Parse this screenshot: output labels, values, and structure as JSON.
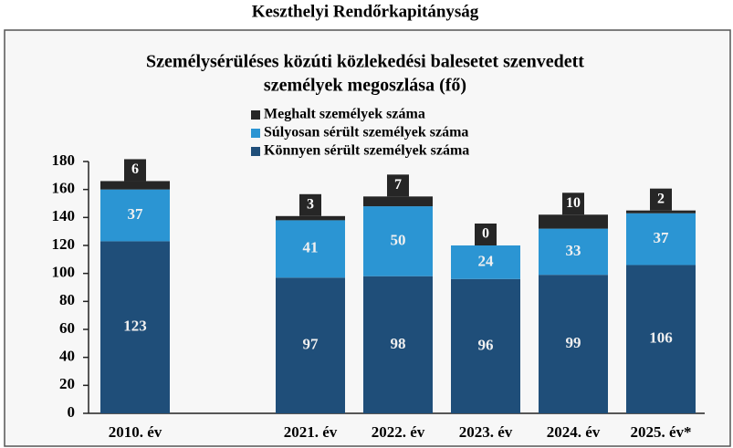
{
  "chart_data": {
    "type": "stacked_bar",
    "supertitle": "Keszthelyi Rendőrkapitányság",
    "title": [
      "Személysérüléses közúti közlekedési balesetet szenvedett",
      "személyek megoszlása (fő)"
    ],
    "categories": [
      "2010. év",
      null,
      "2021. év",
      "2022. év",
      "2023. év",
      "2024. év",
      "2025. év*"
    ],
    "series": [
      {
        "name": "Könnyen sérült személyek száma",
        "color": "#1f4e79",
        "values": [
          123,
          null,
          97,
          98,
          96,
          99,
          106
        ]
      },
      {
        "name": "Súlyosan sérült személyek száma",
        "color": "#2b95d3",
        "values": [
          37,
          null,
          41,
          50,
          24,
          33,
          37
        ]
      },
      {
        "name": "Meghalt személyek száma",
        "color": "#262626",
        "values": [
          6,
          null,
          3,
          7,
          0,
          10,
          2
        ]
      }
    ],
    "ylim": [
      0,
      180
    ],
    "yticks": [
      0,
      20,
      40,
      60,
      80,
      100,
      120,
      140,
      160,
      180
    ]
  }
}
